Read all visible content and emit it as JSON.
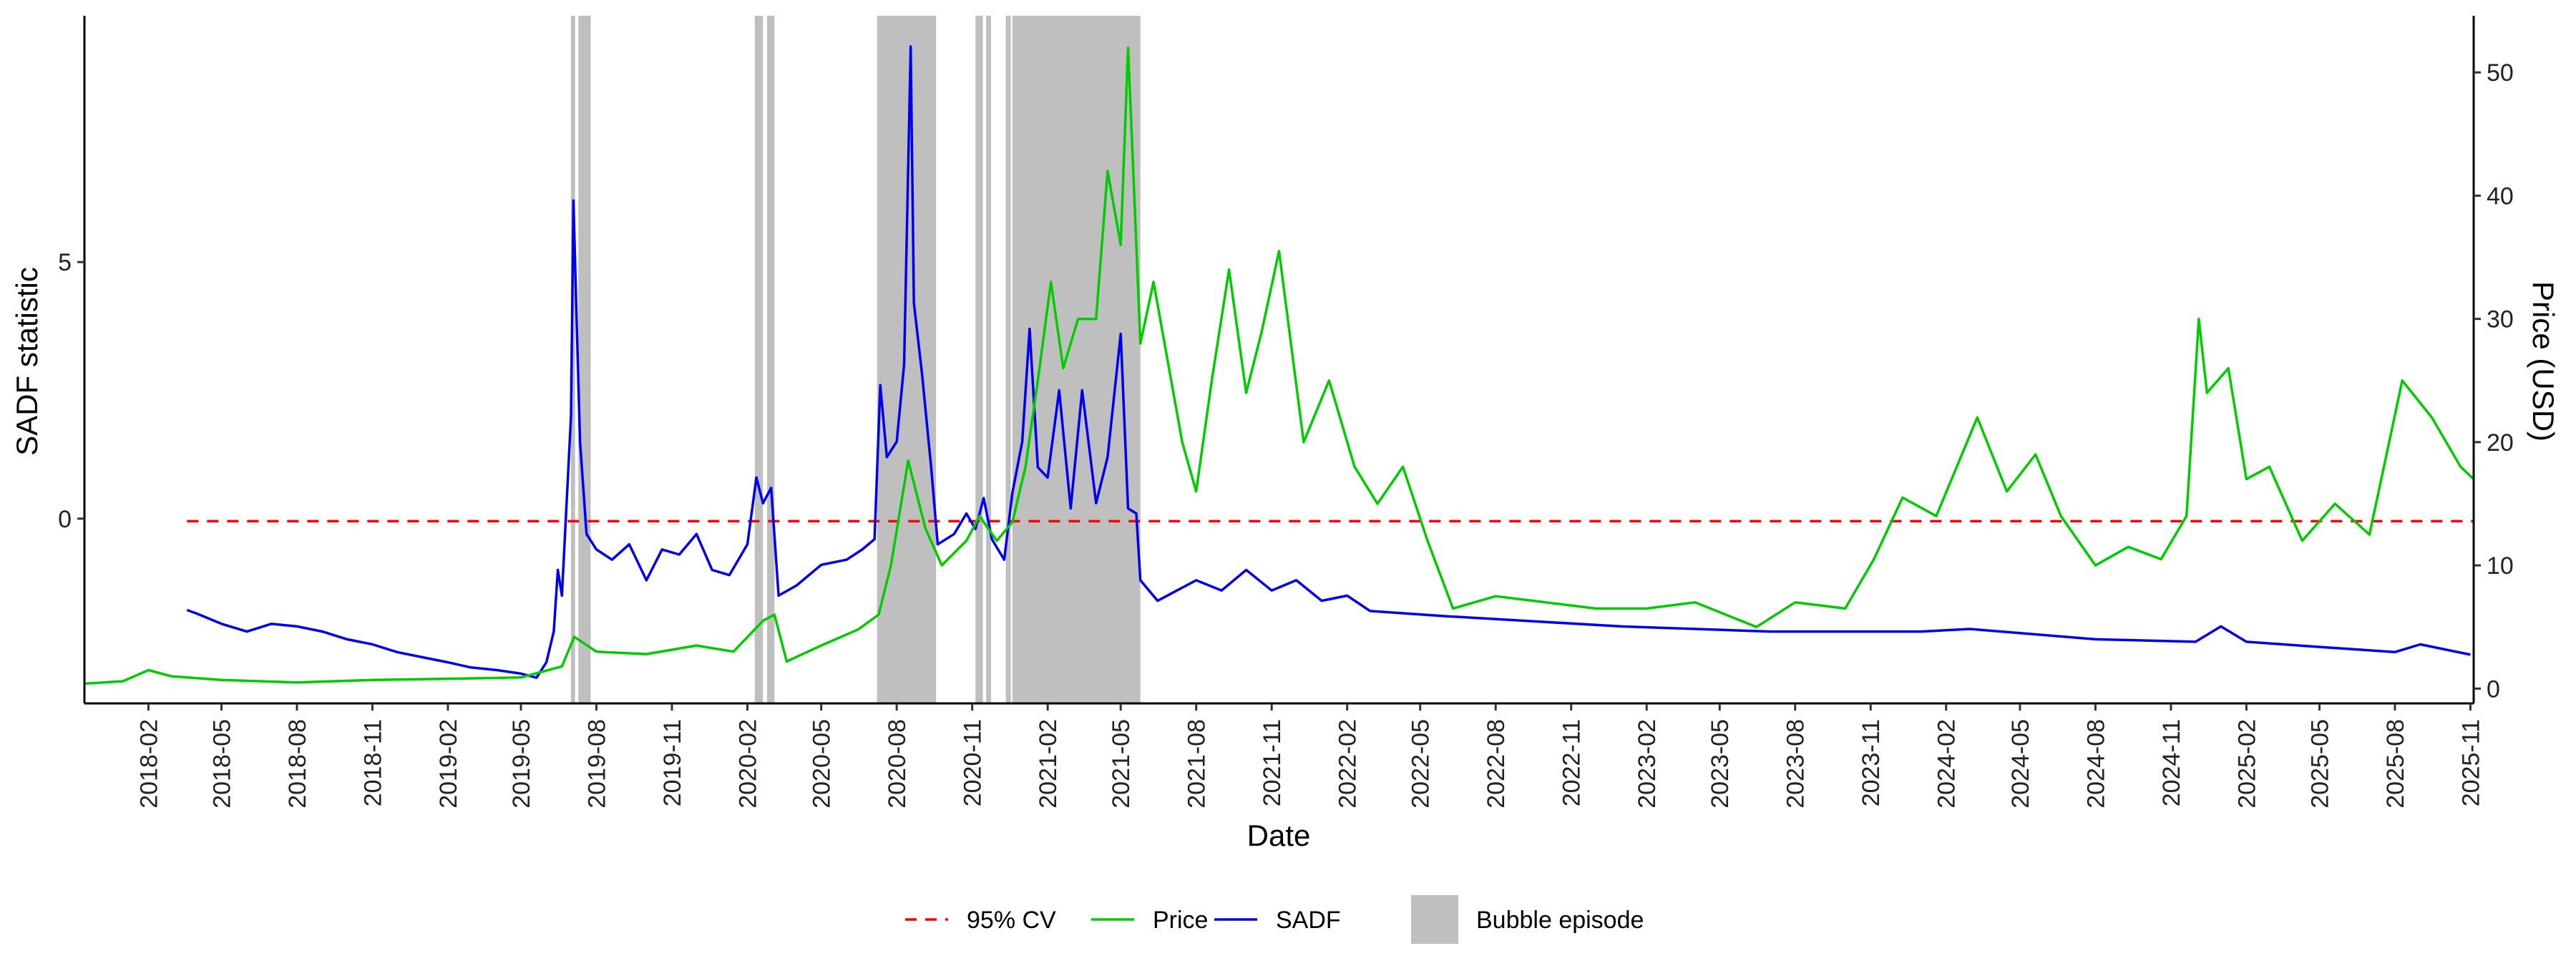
{
  "chart_data": {
    "type": "line",
    "title": "",
    "xlabel": "Date",
    "ylabel_left": "SADF statistic",
    "ylabel_right": "Price (USD)",
    "x_range": [
      "2017-11-15",
      "2025-11-05"
    ],
    "ylim_left": [
      -3.6,
      9.8
    ],
    "ylim_right": [
      -1.2,
      54.6
    ],
    "yticks_left": [
      0,
      5
    ],
    "yticks_left_labels": [
      "0",
      "5"
    ],
    "yticks_right": [
      0,
      10,
      20,
      30,
      40,
      50
    ],
    "yticks_right_labels": [
      "0",
      "10",
      "20",
      "30",
      "40",
      "50"
    ],
    "x_tick_labels": [
      "2018-02",
      "2018-05",
      "2018-08",
      "2018-11",
      "2019-02",
      "2019-05",
      "2019-08",
      "2019-11",
      "2020-02",
      "2020-05",
      "2020-08",
      "2020-11",
      "2021-02",
      "2021-05",
      "2021-08",
      "2021-11",
      "2022-02",
      "2022-05",
      "2022-08",
      "2022-11",
      "2023-02",
      "2023-05",
      "2023-08",
      "2023-11",
      "2024-02",
      "2024-05",
      "2024-08",
      "2024-11",
      "2025-02",
      "2025-05",
      "2025-08",
      "2025-11"
    ],
    "critical_value": {
      "name": "95% CV",
      "value": -0.05,
      "start": "2018-03-20",
      "color": "#ff0000",
      "style": "dashed"
    },
    "bubble_episodes": [
      {
        "start": "2019-07-01",
        "end": "2019-07-06"
      },
      {
        "start": "2019-07-10",
        "end": "2019-07-25"
      },
      {
        "start": "2020-02-10",
        "end": "2020-02-20"
      },
      {
        "start": "2020-02-25",
        "end": "2020-03-05"
      },
      {
        "start": "2020-07-08",
        "end": "2020-09-18"
      },
      {
        "start": "2020-11-05",
        "end": "2020-11-14"
      },
      {
        "start": "2020-11-18",
        "end": "2020-11-24"
      },
      {
        "start": "2020-12-12",
        "end": "2020-12-18"
      },
      {
        "start": "2020-12-20",
        "end": "2021-05-25"
      }
    ],
    "series": [
      {
        "name": "SADF",
        "axis": "left",
        "color": "#0000ee",
        "points": [
          [
            "2018-03-20",
            -1.78
          ],
          [
            "2018-04-01",
            -1.85
          ],
          [
            "2018-05-01",
            -2.05
          ],
          [
            "2018-06-01",
            -2.2
          ],
          [
            "2018-07-01",
            -2.05
          ],
          [
            "2018-08-01",
            -2.1
          ],
          [
            "2018-09-01",
            -2.2
          ],
          [
            "2018-10-01",
            -2.35
          ],
          [
            "2018-11-01",
            -2.45
          ],
          [
            "2018-12-01",
            -2.6
          ],
          [
            "2019-01-01",
            -2.7
          ],
          [
            "2019-02-01",
            -2.8
          ],
          [
            "2019-03-01",
            -2.9
          ],
          [
            "2019-04-01",
            -2.95
          ],
          [
            "2019-05-01",
            -3.02
          ],
          [
            "2019-05-20",
            -3.1
          ],
          [
            "2019-06-01",
            -2.8
          ],
          [
            "2019-06-10",
            -2.2
          ],
          [
            "2019-06-15",
            -1.0
          ],
          [
            "2019-06-20",
            -1.5
          ],
          [
            "2019-06-25",
            0.1
          ],
          [
            "2019-07-01",
            2.0
          ],
          [
            "2019-07-04",
            6.2
          ],
          [
            "2019-07-08",
            3.8
          ],
          [
            "2019-07-12",
            1.5
          ],
          [
            "2019-07-20",
            -0.3
          ],
          [
            "2019-08-01",
            -0.6
          ],
          [
            "2019-08-20",
            -0.8
          ],
          [
            "2019-09-10",
            -0.5
          ],
          [
            "2019-10-01",
            -1.2
          ],
          [
            "2019-10-20",
            -0.6
          ],
          [
            "2019-11-10",
            -0.7
          ],
          [
            "2019-12-01",
            -0.3
          ],
          [
            "2019-12-20",
            -1.0
          ],
          [
            "2020-01-10",
            -1.1
          ],
          [
            "2020-02-01",
            -0.5
          ],
          [
            "2020-02-12",
            0.8
          ],
          [
            "2020-02-20",
            0.3
          ],
          [
            "2020-03-01",
            0.6
          ],
          [
            "2020-03-10",
            -1.5
          ],
          [
            "2020-04-01",
            -1.3
          ],
          [
            "2020-05-01",
            -0.9
          ],
          [
            "2020-06-01",
            -0.8
          ],
          [
            "2020-06-20",
            -0.6
          ],
          [
            "2020-07-05",
            -0.4
          ],
          [
            "2020-07-12",
            2.6
          ],
          [
            "2020-07-20",
            1.2
          ],
          [
            "2020-08-01",
            1.5
          ],
          [
            "2020-08-10",
            3.0
          ],
          [
            "2020-08-18",
            9.2
          ],
          [
            "2020-08-22",
            4.2
          ],
          [
            "2020-09-01",
            2.8
          ],
          [
            "2020-09-12",
            1.0
          ],
          [
            "2020-09-20",
            -0.5
          ],
          [
            "2020-10-10",
            -0.3
          ],
          [
            "2020-10-25",
            0.1
          ],
          [
            "2020-11-05",
            -0.2
          ],
          [
            "2020-11-15",
            0.4
          ],
          [
            "2020-11-25",
            -0.4
          ],
          [
            "2020-12-10",
            -0.8
          ],
          [
            "2020-12-20",
            0.5
          ],
          [
            "2021-01-01",
            1.5
          ],
          [
            "2021-01-10",
            3.7
          ],
          [
            "2021-01-20",
            1.0
          ],
          [
            "2021-02-01",
            0.8
          ],
          [
            "2021-02-15",
            2.5
          ],
          [
            "2021-03-01",
            0.2
          ],
          [
            "2021-03-15",
            2.5
          ],
          [
            "2021-04-01",
            0.3
          ],
          [
            "2021-04-15",
            1.2
          ],
          [
            "2021-05-01",
            3.6
          ],
          [
            "2021-05-10",
            0.2
          ],
          [
            "2021-05-20",
            0.1
          ],
          [
            "2021-05-25",
            -1.2
          ],
          [
            "2021-06-15",
            -1.6
          ],
          [
            "2021-08-01",
            -1.2
          ],
          [
            "2021-09-01",
            -1.4
          ],
          [
            "2021-10-01",
            -1.0
          ],
          [
            "2021-11-01",
            -1.4
          ],
          [
            "2021-12-01",
            -1.2
          ],
          [
            "2022-01-01",
            -1.6
          ],
          [
            "2022-02-01",
            -1.5
          ],
          [
            "2022-03-01",
            -1.8
          ],
          [
            "2022-06-01",
            -1.9
          ],
          [
            "2023-01-01",
            -2.1
          ],
          [
            "2023-07-01",
            -2.2
          ],
          [
            "2024-01-01",
            -2.2
          ],
          [
            "2024-03-01",
            -2.15
          ],
          [
            "2024-08-01",
            -2.35
          ],
          [
            "2024-12-01",
            -2.4
          ],
          [
            "2025-01-01",
            -2.1
          ],
          [
            "2025-02-01",
            -2.4
          ],
          [
            "2025-05-01",
            -2.5
          ],
          [
            "2025-08-01",
            -2.6
          ],
          [
            "2025-09-01",
            -2.45
          ],
          [
            "2025-11-01",
            -2.65
          ]
        ]
      },
      {
        "name": "Price",
        "axis": "right",
        "color": "#00cc00",
        "points": [
          [
            "2017-11-15",
            0.4
          ],
          [
            "2018-01-01",
            0.6
          ],
          [
            "2018-02-01",
            1.5
          ],
          [
            "2018-03-01",
            1.0
          ],
          [
            "2018-05-01",
            0.7
          ],
          [
            "2018-08-01",
            0.5
          ],
          [
            "2018-11-01",
            0.7
          ],
          [
            "2019-02-01",
            0.8
          ],
          [
            "2019-05-01",
            0.9
          ],
          [
            "2019-06-20",
            1.8
          ],
          [
            "2019-07-05",
            4.2
          ],
          [
            "2019-08-01",
            3.0
          ],
          [
            "2019-10-01",
            2.8
          ],
          [
            "2019-12-01",
            3.5
          ],
          [
            "2020-01-15",
            3.0
          ],
          [
            "2020-02-20",
            5.5
          ],
          [
            "2020-03-05",
            6.0
          ],
          [
            "2020-03-20",
            2.2
          ],
          [
            "2020-05-01",
            3.5
          ],
          [
            "2020-06-15",
            4.8
          ],
          [
            "2020-07-10",
            6.0
          ],
          [
            "2020-07-25",
            10.0
          ],
          [
            "2020-08-15",
            18.5
          ],
          [
            "2020-09-05",
            13.0
          ],
          [
            "2020-09-25",
            10.0
          ],
          [
            "2020-10-25",
            12.0
          ],
          [
            "2020-11-10",
            14.0
          ],
          [
            "2020-12-01",
            12.0
          ],
          [
            "2020-12-20",
            13.5
          ],
          [
            "2021-01-05",
            18.0
          ],
          [
            "2021-01-20",
            25.0
          ],
          [
            "2021-02-05",
            33.0
          ],
          [
            "2021-02-20",
            26.0
          ],
          [
            "2021-03-10",
            30.0
          ],
          [
            "2021-04-01",
            30.0
          ],
          [
            "2021-04-15",
            42.0
          ],
          [
            "2021-05-01",
            36.0
          ],
          [
            "2021-05-10",
            52.0
          ],
          [
            "2021-05-15",
            44.0
          ],
          [
            "2021-05-25",
            28.0
          ],
          [
            "2021-06-10",
            33.0
          ],
          [
            "2021-07-15",
            20.0
          ],
          [
            "2021-08-01",
            16.0
          ],
          [
            "2021-08-20",
            25.0
          ],
          [
            "2021-09-10",
            34.0
          ],
          [
            "2021-10-01",
            24.0
          ],
          [
            "2021-10-20",
            29.0
          ],
          [
            "2021-11-10",
            35.5
          ],
          [
            "2021-12-10",
            20.0
          ],
          [
            "2022-01-10",
            25.0
          ],
          [
            "2022-02-10",
            18.0
          ],
          [
            "2022-03-10",
            15.0
          ],
          [
            "2022-04-10",
            18.0
          ],
          [
            "2022-05-10",
            12.0
          ],
          [
            "2022-06-10",
            6.5
          ],
          [
            "2022-08-01",
            7.5
          ],
          [
            "2022-10-01",
            7.0
          ],
          [
            "2022-12-01",
            6.5
          ],
          [
            "2023-02-01",
            6.5
          ],
          [
            "2023-04-01",
            7.0
          ],
          [
            "2023-06-15",
            5.0
          ],
          [
            "2023-08-01",
            7.0
          ],
          [
            "2023-10-01",
            6.5
          ],
          [
            "2023-11-05",
            10.5
          ],
          [
            "2023-12-10",
            15.5
          ],
          [
            "2024-01-20",
            14.0
          ],
          [
            "2024-03-10",
            22.0
          ],
          [
            "2024-04-15",
            16.0
          ],
          [
            "2024-05-20",
            19.0
          ],
          [
            "2024-06-20",
            14.0
          ],
          [
            "2024-08-01",
            10.0
          ],
          [
            "2024-09-10",
            11.5
          ],
          [
            "2024-10-20",
            10.5
          ],
          [
            "2024-11-20",
            14.0
          ],
          [
            "2024-12-05",
            30.0
          ],
          [
            "2024-12-15",
            24.0
          ],
          [
            "2025-01-10",
            26.0
          ],
          [
            "2025-02-01",
            17.0
          ],
          [
            "2025-03-01",
            18.0
          ],
          [
            "2025-04-10",
            12.0
          ],
          [
            "2025-05-20",
            15.0
          ],
          [
            "2025-07-01",
            12.5
          ],
          [
            "2025-08-10",
            25.0
          ],
          [
            "2025-09-15",
            22.0
          ],
          [
            "2025-10-20",
            18.0
          ],
          [
            "2025-11-05",
            17.0
          ]
        ]
      }
    ],
    "legend": {
      "position": "bottom",
      "items": [
        {
          "label": "95% CV",
          "kind": "dashed-line",
          "color": "#ff0000"
        },
        {
          "label": "Price",
          "kind": "line",
          "color": "#00cc00"
        },
        {
          "label": "SADF",
          "kind": "line",
          "color": "#0000ee"
        },
        {
          "label": "Bubble episode",
          "kind": "fill",
          "color": "#bfbfbf"
        }
      ]
    },
    "grid": false
  }
}
